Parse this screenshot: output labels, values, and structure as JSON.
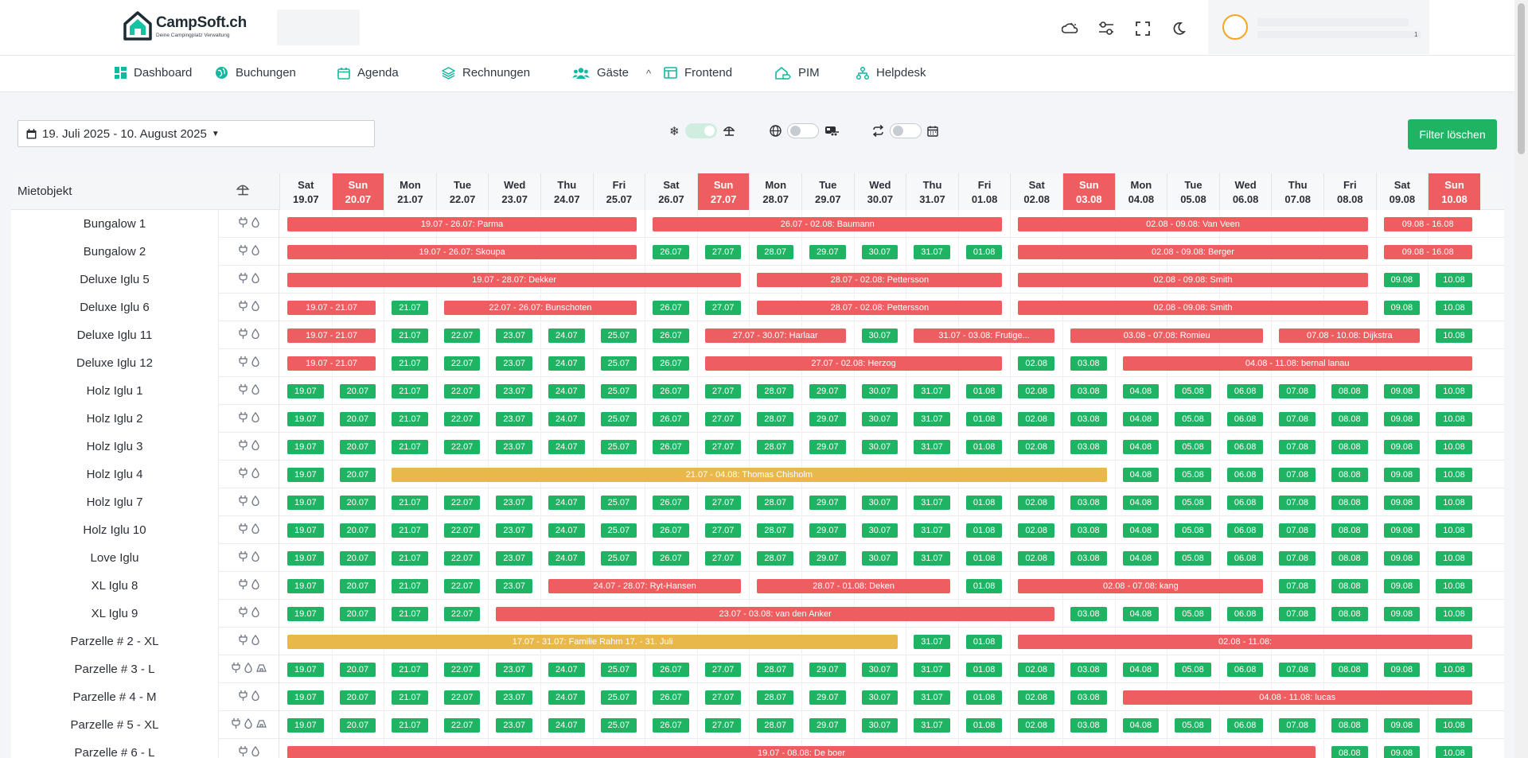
{
  "app": {
    "logo_title": "CampSoft.ch",
    "logo_sub": "Deine Campingplatz Verwaltung"
  },
  "header": {
    "icons": [
      "weather-icon",
      "settings-sliders-icon",
      "fullscreen-icon",
      "moon-icon"
    ],
    "user_mark": "1"
  },
  "nav": {
    "items": [
      {
        "label": "Dashboard",
        "icon": "grid-icon"
      },
      {
        "label": "Buchungen",
        "icon": "globe-icon"
      },
      {
        "label": "Agenda",
        "icon": "calendar-icon"
      },
      {
        "label": "Rechnungen",
        "icon": "layers-icon"
      },
      {
        "label": "Gäste",
        "icon": "users-icon"
      },
      {
        "label": "Frontend",
        "icon": "browser-icon"
      },
      {
        "label": "PIM",
        "icon": "house-tag-icon"
      },
      {
        "label": "Helpdesk",
        "icon": "sitemap-icon"
      }
    ],
    "caret": "^"
  },
  "filters": {
    "date_range": "19. Juli 2025 - 10. August 2025",
    "toggles": [
      {
        "left_icon": "snowflake-icon",
        "right_icon": "beach-umbrella-icon",
        "on": true
      },
      {
        "left_icon": "globe-icon",
        "right_icon": "caravan-icon",
        "on": false
      },
      {
        "left_icon": "swap-icon",
        "right_icon": "calendar-icon",
        "on": false
      }
    ],
    "clear_label": "Filter löschen"
  },
  "colors": {
    "free": "#1fb463",
    "booked": "#ee5d5f",
    "option": "#e8b84a",
    "sunday": "#ee5d5f"
  },
  "grid": {
    "object_header": "Mietobjekt",
    "header_icon": "beach-umbrella-icon",
    "days": [
      {
        "wd": "Sat",
        "d": "19.07"
      },
      {
        "wd": "Sun",
        "d": "20.07"
      },
      {
        "wd": "Mon",
        "d": "21.07"
      },
      {
        "wd": "Tue",
        "d": "22.07"
      },
      {
        "wd": "Wed",
        "d": "23.07"
      },
      {
        "wd": "Thu",
        "d": "24.07"
      },
      {
        "wd": "Fri",
        "d": "25.07"
      },
      {
        "wd": "Sat",
        "d": "26.07"
      },
      {
        "wd": "Sun",
        "d": "27.07"
      },
      {
        "wd": "Mon",
        "d": "28.07"
      },
      {
        "wd": "Tue",
        "d": "29.07"
      },
      {
        "wd": "Wed",
        "d": "30.07"
      },
      {
        "wd": "Thu",
        "d": "31.07"
      },
      {
        "wd": "Fri",
        "d": "01.08"
      },
      {
        "wd": "Sat",
        "d": "02.08"
      },
      {
        "wd": "Sun",
        "d": "03.08"
      },
      {
        "wd": "Mon",
        "d": "04.08"
      },
      {
        "wd": "Tue",
        "d": "05.08"
      },
      {
        "wd": "Wed",
        "d": "06.08"
      },
      {
        "wd": "Thu",
        "d": "07.08"
      },
      {
        "wd": "Fri",
        "d": "08.08"
      },
      {
        "wd": "Sat",
        "d": "09.08"
      },
      {
        "wd": "Sun",
        "d": "10.08"
      }
    ],
    "rows": [
      {
        "name": "Bungalow 1",
        "icons": [
          "plug-icon",
          "water-drop-icon"
        ],
        "bookings": [
          {
            "from": 0,
            "to": 6,
            "label": "19.07 - 26.07: Parma",
            "color": "red"
          },
          {
            "from": 7,
            "to": 13,
            "label": "26.07 - 02.08: Baumann",
            "color": "red"
          },
          {
            "from": 14,
            "to": 20,
            "label": "02.08 - 09.08: Van Veen",
            "color": "red"
          },
          {
            "from": 21,
            "to": 22,
            "label": "09.08 - 16.08",
            "color": "red"
          }
        ]
      },
      {
        "name": "Bungalow 2",
        "icons": [
          "plug-icon",
          "water-drop-icon"
        ],
        "bookings": [
          {
            "from": 0,
            "to": 6,
            "label": "19.07 - 26.07: Skoupa",
            "color": "red"
          },
          {
            "from": 14,
            "to": 20,
            "label": "02.08 - 09.08: Berger",
            "color": "red"
          },
          {
            "from": 21,
            "to": 22,
            "label": "09.08 - 16.08",
            "color": "red"
          }
        ]
      },
      {
        "name": "Deluxe Iglu 5",
        "icons": [
          "plug-icon",
          "water-drop-icon"
        ],
        "bookings": [
          {
            "from": 0,
            "to": 8,
            "label": "19.07 - 28.07: Dekker",
            "color": "red"
          },
          {
            "from": 9,
            "to": 13,
            "label": "28.07 - 02.08: Pettersson",
            "color": "red"
          },
          {
            "from": 14,
            "to": 20,
            "label": "02.08 - 09.08: Smith",
            "color": "red"
          }
        ]
      },
      {
        "name": "Deluxe Iglu 6",
        "icons": [
          "plug-icon",
          "water-drop-icon"
        ],
        "bookings": [
          {
            "from": 0,
            "to": 1,
            "label": "19.07 - 21.07",
            "color": "red"
          },
          {
            "from": 3,
            "to": 6,
            "label": "22.07 - 26.07: Bunschoten",
            "color": "red"
          },
          {
            "from": 9,
            "to": 13,
            "label": "28.07 - 02.08: Pettersson",
            "color": "red"
          },
          {
            "from": 14,
            "to": 20,
            "label": "02.08 - 09.08: Smith",
            "color": "red"
          }
        ]
      },
      {
        "name": "Deluxe Iglu 11",
        "icons": [
          "plug-icon",
          "water-drop-icon"
        ],
        "bookings": [
          {
            "from": 0,
            "to": 1,
            "label": "19.07 - 21.07",
            "color": "red"
          },
          {
            "from": 8,
            "to": 10,
            "label": "27.07 - 30.07: Harlaar",
            "color": "red"
          },
          {
            "from": 12,
            "to": 14,
            "label": "31.07 - 03.08: Frutige...",
            "color": "red"
          },
          {
            "from": 15,
            "to": 18,
            "label": "03.08 - 07.08: Romieu",
            "color": "red"
          },
          {
            "from": 19,
            "to": 21,
            "label": "07.08 - 10.08: Dijkstra",
            "color": "red"
          }
        ]
      },
      {
        "name": "Deluxe Iglu 12",
        "icons": [
          "plug-icon",
          "water-drop-icon"
        ],
        "bookings": [
          {
            "from": 0,
            "to": 1,
            "label": "19.07 - 21.07",
            "color": "red"
          },
          {
            "from": 8,
            "to": 13,
            "label": "27.07 - 02.08: Herzog",
            "color": "red"
          },
          {
            "from": 16,
            "to": 22,
            "label": "04.08 - 11.08: bernal lanau",
            "color": "red"
          }
        ]
      },
      {
        "name": "Holz Iglu 1",
        "icons": [
          "plug-icon",
          "water-drop-icon"
        ],
        "bookings": []
      },
      {
        "name": "Holz Iglu 2",
        "icons": [
          "plug-icon",
          "water-drop-icon"
        ],
        "bookings": []
      },
      {
        "name": "Holz Iglu 3",
        "icons": [
          "plug-icon",
          "water-drop-icon"
        ],
        "bookings": []
      },
      {
        "name": "Holz Iglu 4",
        "icons": [
          "plug-icon",
          "water-drop-icon"
        ],
        "bookings": [
          {
            "from": 2,
            "to": 15,
            "label": "21.07 - 04.08: Thomas Chisholm",
            "color": "yellow"
          }
        ]
      },
      {
        "name": "Holz Iglu 7",
        "icons": [
          "plug-icon",
          "water-drop-icon"
        ],
        "bookings": []
      },
      {
        "name": "Holz Iglu 10",
        "icons": [
          "plug-icon",
          "water-drop-icon"
        ],
        "bookings": []
      },
      {
        "name": "Love Iglu",
        "icons": [
          "plug-icon",
          "water-drop-icon"
        ],
        "bookings": []
      },
      {
        "name": "XL Iglu 8",
        "icons": [
          "plug-icon",
          "water-drop-icon"
        ],
        "bookings": [
          {
            "from": 5,
            "to": 8,
            "label": "24.07 - 28.07: Ryt-Hansen",
            "color": "red"
          },
          {
            "from": 9,
            "to": 12,
            "label": "28.07 - 01.08: Deken",
            "color": "red"
          },
          {
            "from": 14,
            "to": 18,
            "label": "02.08 - 07.08: kang",
            "color": "red"
          }
        ]
      },
      {
        "name": "XL Iglu 9",
        "icons": [
          "plug-icon",
          "water-drop-icon"
        ],
        "bookings": [
          {
            "from": 4,
            "to": 14,
            "label": "23.07 - 03.08: van den Anker",
            "color": "red"
          }
        ]
      },
      {
        "name": "Parzelle # 2 - XL",
        "icons": [
          "plug-icon",
          "water-drop-icon"
        ],
        "bookings": [
          {
            "from": 0,
            "to": 11,
            "label": "17.07 - 31.07: Familie Rahm 17. - 31. Juli",
            "color": "yellow"
          },
          {
            "from": 14,
            "to": 22,
            "label": "02.08 - 11.08:",
            "color": "red"
          }
        ]
      },
      {
        "name": "Parzelle # 3 - L",
        "icons": [
          "plug-icon",
          "water-drop-icon",
          "caravan-icon"
        ],
        "bookings": []
      },
      {
        "name": "Parzelle # 4 - M",
        "icons": [
          "plug-icon",
          "water-drop-icon"
        ],
        "bookings": [
          {
            "from": 16,
            "to": 22,
            "label": "04.08 - 11.08: lucas",
            "color": "red"
          }
        ]
      },
      {
        "name": "Parzelle # 5 - XL",
        "icons": [
          "plug-icon",
          "water-drop-icon",
          "caravan-icon"
        ],
        "bookings": []
      },
      {
        "name": "Parzelle # 6 - L",
        "icons": [
          "plug-icon",
          "water-drop-icon"
        ],
        "bookings": [
          {
            "from": 0,
            "to": 19,
            "label": "19.07 - 08.08: De boer",
            "color": "red"
          }
        ]
      }
    ]
  }
}
